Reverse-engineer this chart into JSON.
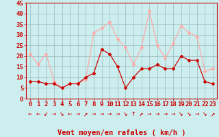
{
  "hours": [
    0,
    1,
    2,
    3,
    4,
    5,
    6,
    7,
    8,
    9,
    10,
    11,
    12,
    13,
    14,
    15,
    16,
    17,
    18,
    19,
    20,
    21,
    22,
    23
  ],
  "vent_moyen": [
    8,
    8,
    7,
    7,
    5,
    7,
    7,
    10,
    12,
    23,
    21,
    15,
    5,
    10,
    14,
    14,
    16,
    14,
    14,
    20,
    18,
    18,
    8,
    7
  ],
  "rafales": [
    21,
    16,
    21,
    8,
    5,
    7,
    7,
    9,
    31,
    33,
    36,
    28,
    24,
    16,
    24,
    41,
    25,
    19,
    26,
    34,
    31,
    29,
    13,
    14
  ],
  "color_moyen": "#cc0000",
  "color_rafales": "#ffaaaa",
  "bg_color": "#cceeee",
  "grid_color": "#99bbbb",
  "xlabel": "Vent moyen/en rafales ( km/h )",
  "ylim": [
    0,
    45
  ],
  "yticks": [
    0,
    5,
    10,
    15,
    20,
    25,
    30,
    35,
    40,
    45
  ],
  "tick_fontsize": 6.5,
  "xlabel_fontsize": 7.5,
  "arrow_row": [
    "←",
    "←",
    "↙",
    "→",
    "↘",
    "←",
    "→",
    "↗",
    "→",
    "→",
    "→",
    "→",
    "↘",
    "↑",
    "↗",
    "→",
    "→",
    "→",
    "→",
    "↘",
    "↘",
    "→",
    "↘",
    "↗"
  ]
}
